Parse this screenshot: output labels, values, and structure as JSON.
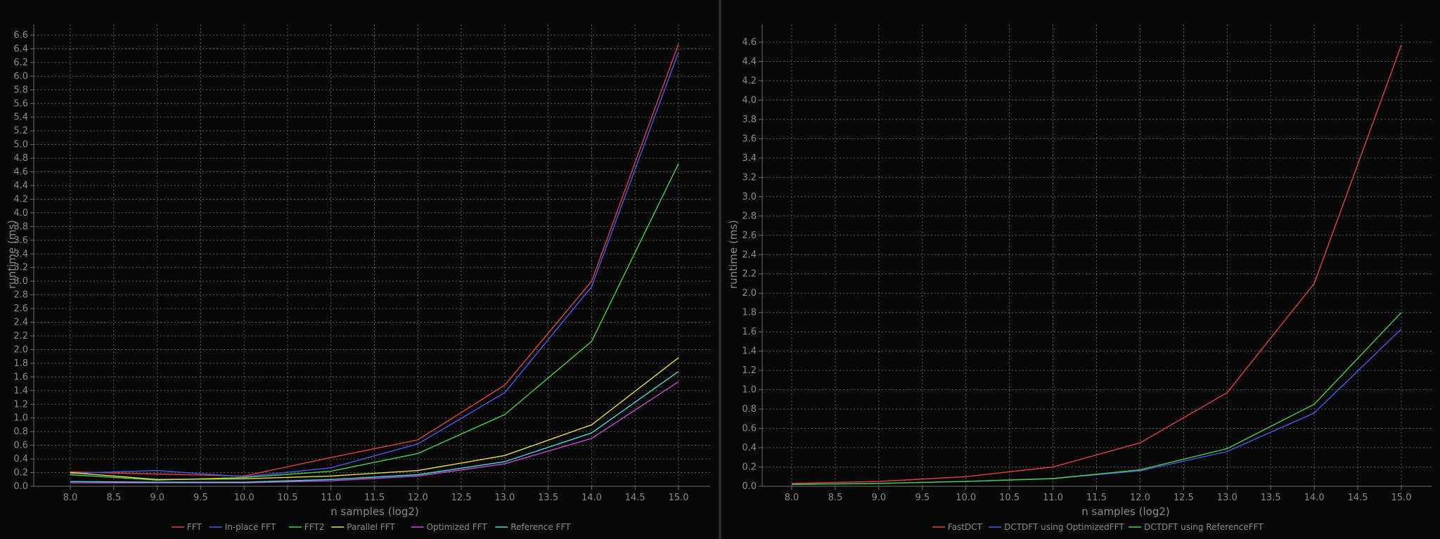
{
  "charts": [
    {
      "id": "left",
      "type": "line",
      "xlabel": "n samples (log2)",
      "ylabel": "runtime (ms)",
      "xlim": [
        8.0,
        15.0
      ],
      "ylim": [
        0.0,
        6.6
      ],
      "x_ticks": [
        "8.0",
        "8.5",
        "9.0",
        "9.5",
        "10.0",
        "10.5",
        "11.0",
        "11.5",
        "12.0",
        "12.5",
        "13.0",
        "13.5",
        "14.0",
        "14.5",
        "15.0"
      ],
      "y_ticks": [
        "0.0",
        "0.2",
        "0.4",
        "0.6",
        "0.8",
        "1.0",
        "1.2",
        "1.4",
        "1.6",
        "1.8",
        "2.0",
        "2.2",
        "2.4",
        "2.6",
        "2.8",
        "3.0",
        "3.2",
        "3.4",
        "3.6",
        "3.8",
        "4.0",
        "4.2",
        "4.4",
        "4.6",
        "4.8",
        "5.0",
        "5.2",
        "5.4",
        "5.6",
        "5.8",
        "6.0",
        "6.2",
        "6.4",
        "6.6"
      ],
      "grid": true,
      "legend_position": "bottom"
    },
    {
      "id": "right",
      "type": "line",
      "xlabel": "n samples (log2)",
      "ylabel": "runtime (ms)",
      "xlim": [
        8.0,
        15.0
      ],
      "ylim": [
        0.0,
        4.6
      ],
      "x_ticks": [
        "8.0",
        "8.5",
        "9.0",
        "9.5",
        "10.0",
        "10.5",
        "11.0",
        "11.5",
        "12.0",
        "12.5",
        "13.0",
        "13.5",
        "14.0",
        "14.5",
        "15.0"
      ],
      "y_ticks": [
        "0.0",
        "0.2",
        "0.4",
        "0.6",
        "0.8",
        "1.0",
        "1.2",
        "1.4",
        "1.6",
        "1.8",
        "2.0",
        "2.2",
        "2.4",
        "2.6",
        "2.8",
        "3.0",
        "3.2",
        "3.4",
        "3.6",
        "3.8",
        "4.0",
        "4.2",
        "4.4",
        "4.6"
      ],
      "grid": true,
      "legend_position": "bottom"
    }
  ],
  "chart_data": [
    {
      "type": "line",
      "xlabel": "n samples (log2)",
      "ylabel": "runtime (ms)",
      "xlim": [
        8.0,
        15.0
      ],
      "ylim": [
        0.0,
        6.6
      ],
      "x": [
        8,
        9,
        10,
        11,
        12,
        13,
        14,
        15
      ],
      "series": [
        {
          "name": "FFT",
          "color": "#e04040",
          "values": [
            0.21,
            0.18,
            0.15,
            0.42,
            0.68,
            1.48,
            3.0,
            6.47
          ]
        },
        {
          "name": "In-place FFT",
          "color": "#4a5ae8",
          "values": [
            0.19,
            0.23,
            0.14,
            0.27,
            0.62,
            1.37,
            2.92,
            6.35
          ]
        },
        {
          "name": "FFT2",
          "color": "#48d048",
          "values": [
            0.17,
            0.09,
            0.13,
            0.22,
            0.48,
            1.05,
            2.12,
            4.72
          ]
        },
        {
          "name": "Parallel FFT",
          "color": "#e8e04a",
          "values": [
            0.2,
            0.1,
            0.11,
            0.15,
            0.23,
            0.45,
            0.9,
            1.88
          ]
        },
        {
          "name": "Optimized FFT",
          "color": "#c84ad8",
          "values": [
            0.05,
            0.05,
            0.05,
            0.08,
            0.15,
            0.33,
            0.7,
            1.53
          ]
        },
        {
          "name": "Reference FFT",
          "color": "#4ad8d8",
          "values": [
            0.07,
            0.06,
            0.06,
            0.1,
            0.17,
            0.36,
            0.78,
            1.68
          ]
        }
      ]
    },
    {
      "type": "line",
      "xlabel": "n samples (log2)",
      "ylabel": "runtime (ms)",
      "xlim": [
        8.0,
        15.0
      ],
      "ylim": [
        0.0,
        4.6
      ],
      "x": [
        8,
        9,
        10,
        11,
        12,
        13,
        14,
        15
      ],
      "series": [
        {
          "name": "FastDCT",
          "color": "#e04040",
          "values": [
            0.03,
            0.05,
            0.1,
            0.2,
            0.45,
            0.97,
            2.1,
            4.57
          ]
        },
        {
          "name": "DCTDFT using OptimizedFFT",
          "color": "#4a5ae8",
          "values": [
            0.02,
            0.03,
            0.05,
            0.08,
            0.16,
            0.36,
            0.76,
            1.63
          ]
        },
        {
          "name": "DCTDFT using ReferenceFFT",
          "color": "#48d048",
          "values": [
            0.02,
            0.03,
            0.05,
            0.08,
            0.17,
            0.39,
            0.85,
            1.8
          ]
        }
      ]
    }
  ]
}
